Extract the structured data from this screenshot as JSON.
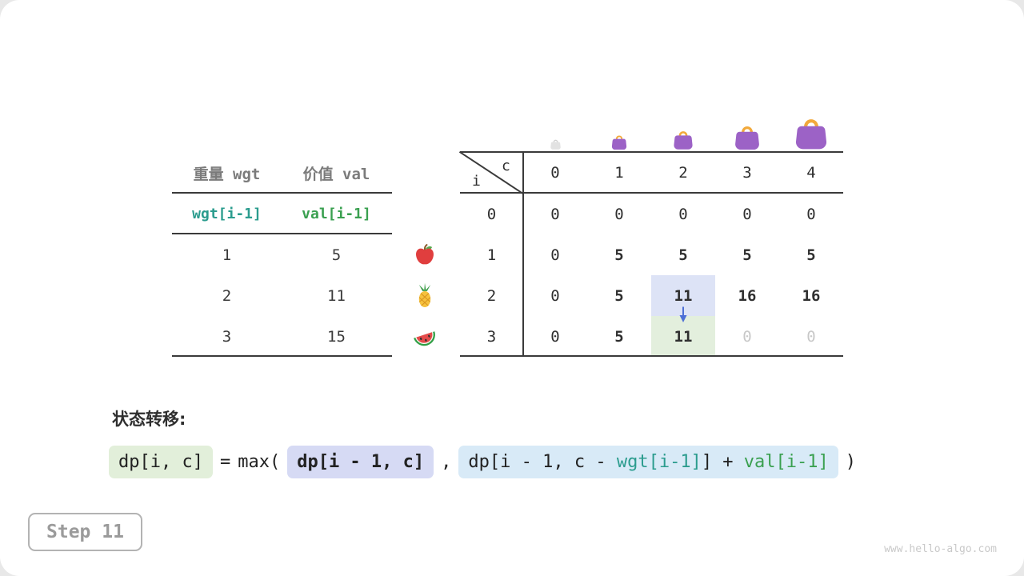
{
  "page": {
    "transition_label": "状态转移:",
    "step_label": "Step 11",
    "watermark": "www.hello-algo.com"
  },
  "weights_table": {
    "col1_header": "重量 wgt",
    "col2_header": "价值 val",
    "var_row": {
      "wgt": "wgt[i-1]",
      "val": "val[i-1]"
    },
    "rows": [
      {
        "wgt": "1",
        "val": "5"
      },
      {
        "wgt": "2",
        "val": "11"
      },
      {
        "wgt": "3",
        "val": "15"
      }
    ]
  },
  "dp_table": {
    "corner": {
      "top": "c",
      "bottom": "i"
    },
    "col_headers": [
      "0",
      "1",
      "2",
      "3",
      "4"
    ],
    "row_labels": [
      "0",
      "1",
      "2",
      "3"
    ],
    "cells": [
      [
        "0",
        "0",
        "0",
        "0",
        "0"
      ],
      [
        "0",
        "5",
        "5",
        "5",
        "5"
      ],
      [
        "0",
        "5",
        "11",
        "16",
        "16"
      ],
      [
        "0",
        "5",
        "11",
        "0",
        "0"
      ]
    ],
    "highlight_source": {
      "row": 2,
      "col": 2
    },
    "highlight_target": {
      "row": 3,
      "col": 2
    },
    "dimmed_cells": [
      [
        3,
        3
      ],
      [
        3,
        4
      ]
    ],
    "row_icons": [
      "apple",
      "pineapple",
      "watermelon"
    ]
  },
  "formula": {
    "lhs": "dp[i, c]",
    "eq": "=",
    "max_open": "max(",
    "arg1": "dp[i - 1, c]",
    "comma": ",",
    "arg2_prefix": "dp[i - 1, c - ",
    "arg2_wgt": "wgt[i-1]",
    "arg2_mid": "] + ",
    "arg2_val": "val[i-1]",
    "close": ")"
  },
  "colors": {
    "teal": "#2b9c8e",
    "green": "#3aa050",
    "cell_highlight_blue": "#dde3f6",
    "cell_highlight_green": "#e3efdd",
    "chip_green": "#e2efda",
    "chip_purple": "#d6daf4",
    "chip_blue": "#d8eaf7",
    "bag_purple": "#9c62c6",
    "bag_handle_orange": "#f2a93b",
    "arrow_blue": "#4d6fd6"
  }
}
